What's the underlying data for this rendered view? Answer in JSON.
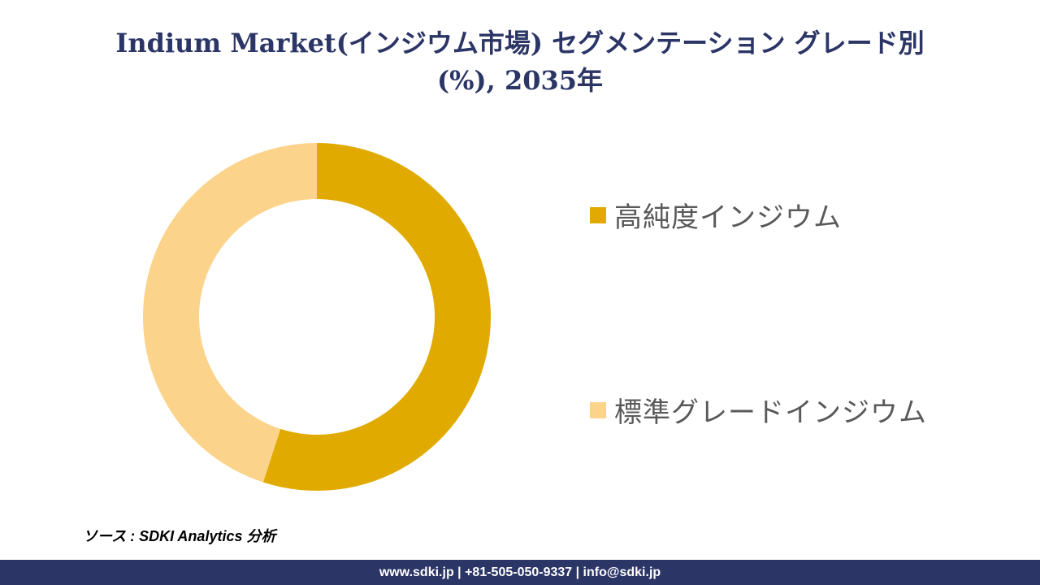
{
  "title_line1": "Indium Market(インジウム市場) セグメンテーション グレード別",
  "title_line2": "(%), 2035年",
  "chart_data": {
    "type": "pie",
    "title": "Indium Market(インジウム市場) セグメンテーション グレード別 (%), 2035年",
    "donut": true,
    "legend_position": "right",
    "categories": [
      "高純度インジウム",
      "標準グレードインジウム"
    ],
    "values": [
      55,
      45
    ],
    "colors": [
      "#e0aa00",
      "#fcd38a"
    ]
  },
  "source_text": "ソース : SDKI Analytics 分析",
  "footer_text": "www.sdki.jp | +81-505-050-9337 | info@sdki.jp"
}
